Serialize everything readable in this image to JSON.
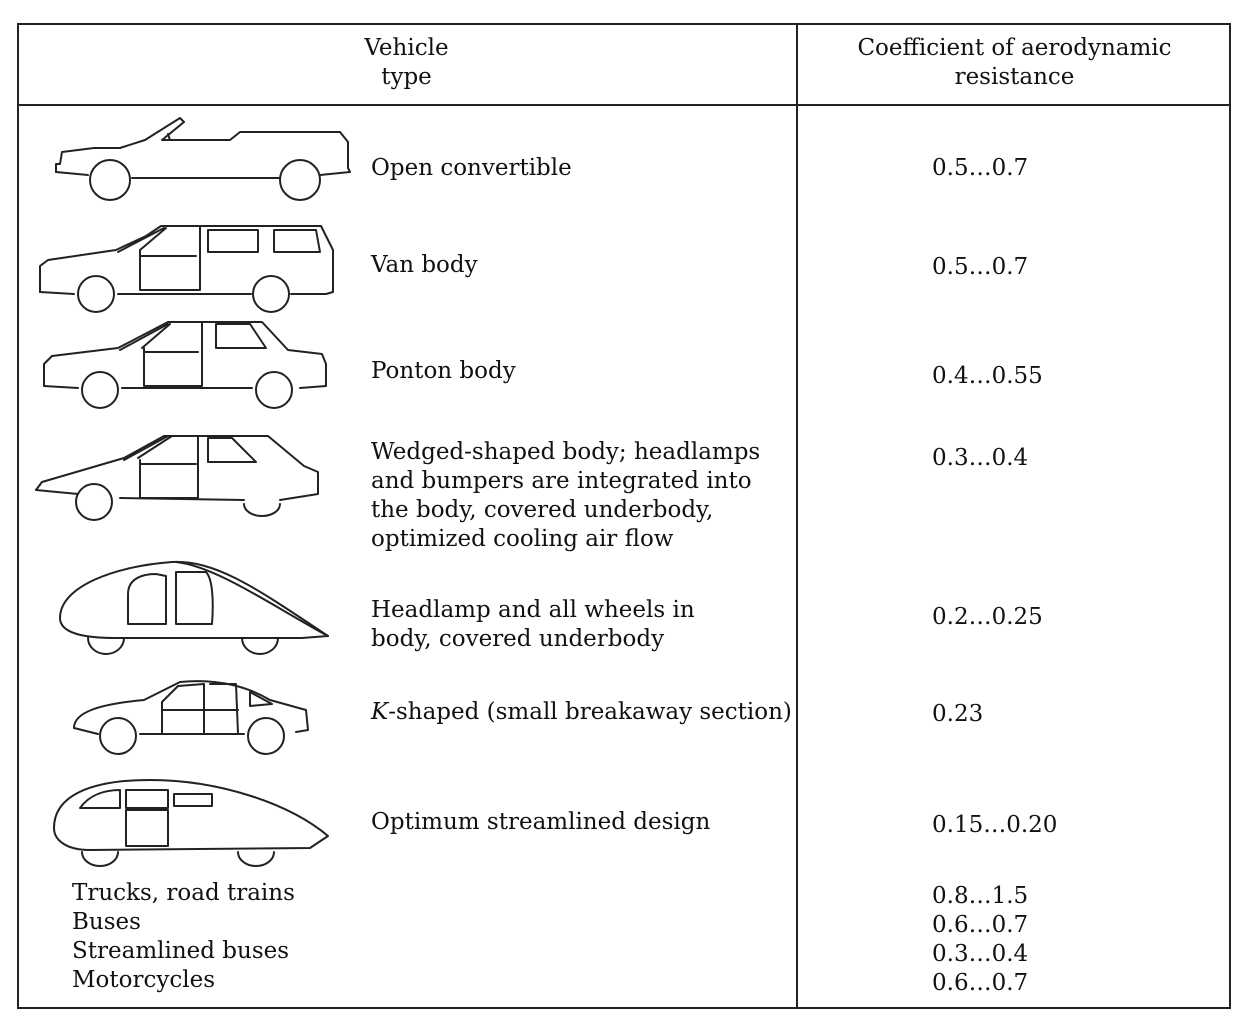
{
  "header": {
    "col1_line1": "Vehicle",
    "col1_line2": "type",
    "col2_line1": "Coefficient of aerodynamic",
    "col2_line2": "resistance"
  },
  "rows": [
    {
      "label": "Open convertible",
      "icon": "open-convertible-car-icon",
      "value": "0.5…0.7"
    },
    {
      "label": "Van body",
      "icon": "van-body-car-icon",
      "value": "0.5…0.7"
    },
    {
      "label": "Ponton body",
      "icon": "ponton-body-car-icon",
      "value": "0.4…0.55"
    },
    {
      "label": "Wedged-shaped body; headlamps\nand bumpers are integrated into\nthe body, covered underbody,\noptimized cooling air flow",
      "icon": "wedge-shaped-car-icon",
      "value": "0.3…0.4"
    },
    {
      "label": "Headlamp and all wheels in\nbody, covered underbody",
      "icon": "headlamp-wheels-in-body-car-icon",
      "value": "0.2…0.25"
    },
    {
      "label_prefix": "K",
      "label": "-shaped (small breakaway section)",
      "icon": "k-shaped-car-icon",
      "value": "0.23"
    },
    {
      "label": "Optimum streamlined design",
      "icon": "streamlined-car-icon",
      "value": "0.15…0.20"
    }
  ],
  "other_vehicles": {
    "names": [
      "Trucks, road trains",
      "Buses",
      "Streamlined buses",
      "Motorcycles"
    ],
    "values": [
      "0.8…1.5",
      "0.6…0.7",
      "0.3…0.4",
      "0.6…0.7"
    ]
  }
}
